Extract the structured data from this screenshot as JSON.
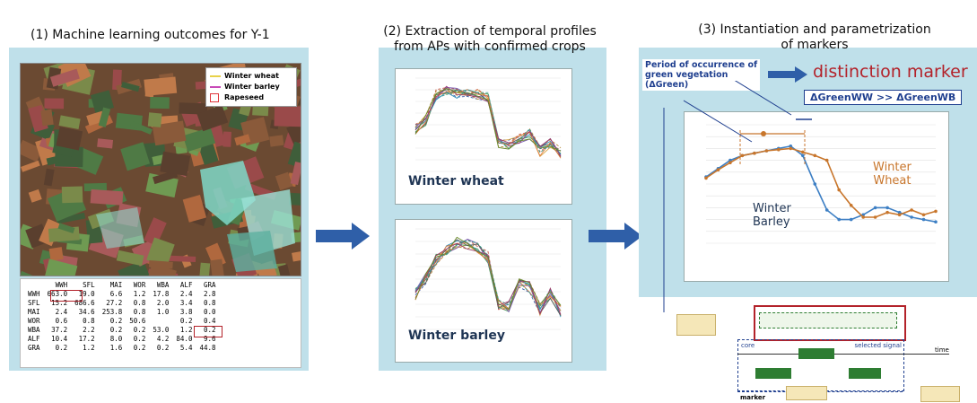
{
  "step1": {
    "title": "(1) Machine learning outcomes for Y-1",
    "legend": [
      {
        "label": "Winter wheat",
        "color": "#e8d24a"
      },
      {
        "label": "Winter barley",
        "color": "#c84ab8"
      },
      {
        "label": "Rapeseed",
        "color": "#e0363c"
      }
    ],
    "matrix": {
      "header": [
        "",
        "WWH",
        "SFL",
        "MAI",
        "WOR",
        "WBA",
        "ALF",
        "GRA"
      ],
      "rows": [
        [
          "WWH",
          "663.0",
          "19.0",
          "6.6",
          "1.2",
          "17.8",
          "2.4",
          "2.8"
        ],
        [
          "SFL",
          "15.2",
          "686.6",
          "27.2",
          "0.8",
          "2.0",
          "3.4",
          "0.8"
        ],
        [
          "MAI",
          "2.4",
          "34.6",
          "253.8",
          "0.8",
          "1.0",
          "3.8",
          "0.0"
        ],
        [
          "WOR",
          "0.6",
          "0.8",
          "0.2",
          "50.6",
          "",
          "0.2",
          "0.4"
        ],
        [
          "WBA",
          "37.2",
          "2.2",
          "0.2",
          "0.2",
          "53.0",
          "1.2",
          "0.2"
        ],
        [
          "ALF",
          "10.4",
          "17.2",
          "8.0",
          "0.2",
          "4.2",
          "84.0",
          "9.6"
        ],
        [
          "GRA",
          "0.2",
          "1.2",
          "1.6",
          "0.2",
          "0.2",
          "5.4",
          "44.8"
        ]
      ]
    }
  },
  "step2": {
    "title_line1": "(2) Extraction of temporal profiles",
    "title_line2": "from APs with confirmed crops",
    "chart_top_label": "Winter wheat",
    "chart_bottom_label": "Winter barley"
  },
  "step3": {
    "title_line1": "(3) Instantiation and parametrization",
    "title_line2": "of markers",
    "period_line1": "Period of occurrence of",
    "period_line2": "green vegetation",
    "period_line3": "(ΔGreen)",
    "distinction": "distinction marker",
    "delta_formula": "ΔGreenWW >> ΔGreenWB",
    "wheat_label_line1": "Winter",
    "wheat_label_line2": "Wheat",
    "barley_label_line1": "Winter",
    "barley_label_line2": "Barley"
  },
  "marker": {
    "core": "core",
    "selected": "selected signal",
    "time": "time",
    "marker": "marker"
  },
  "colors": {
    "panel": "#bfe0ea",
    "arrow": "#2f5fa8",
    "red": "#b3222a",
    "wheat": "#c8762c",
    "barley": "#3d7fc4",
    "green_box": "#2e7d32",
    "navy": "#1f3f8f"
  }
}
